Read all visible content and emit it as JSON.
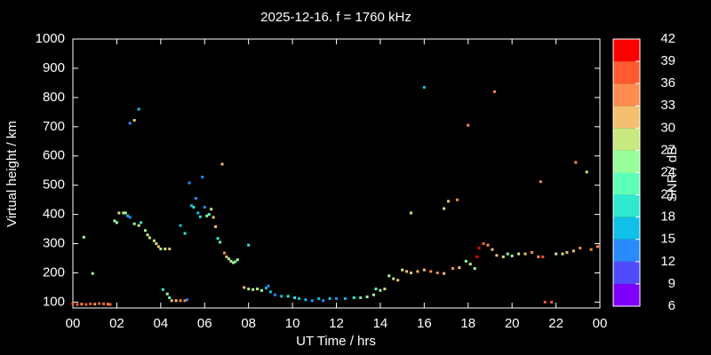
{
  "chart_data": {
    "type": "scatter",
    "title": "2025-12-16. f = 1760 kHz",
    "x_label": "UT Time / hrs",
    "y_label": "Virtual height / km",
    "xlim": [
      0,
      24
    ],
    "xticks": [
      {
        "value": 0,
        "label": "00"
      },
      {
        "value": 2,
        "label": "02"
      },
      {
        "value": 4,
        "label": "04"
      },
      {
        "value": 6,
        "label": "06"
      },
      {
        "value": 8,
        "label": "08"
      },
      10,
      12,
      14,
      16,
      18,
      20,
      22,
      {
        "value": 24,
        "label": "00"
      }
    ],
    "ylim": [
      80,
      1000
    ],
    "yticks": [
      100,
      200,
      300,
      400,
      500,
      600,
      700,
      800,
      900,
      1000
    ],
    "colorbar": {
      "label": "SNR / dB",
      "lim": [
        6,
        42
      ],
      "ticks": [
        6,
        9,
        12,
        15,
        18,
        21,
        24,
        27,
        30,
        33,
        36,
        39,
        42
      ],
      "colors": [
        "#8000ff",
        "#4f4cff",
        "#2a8aff",
        "#10c0e8",
        "#30e8d0",
        "#60ffb8",
        "#98ff98",
        "#c8e880",
        "#f4c070",
        "#ff8c50",
        "#ff5a30",
        "#ff0000"
      ]
    },
    "x": [
      0.0,
      0.2,
      0.4,
      0.6,
      0.8,
      1.0,
      1.2,
      1.4,
      1.6,
      1.7,
      0.5,
      0.9,
      1.9,
      2.0,
      2.1,
      2.3,
      2.4,
      2.5,
      2.6,
      2.6,
      2.8,
      3.0,
      2.8,
      3.0,
      3.1,
      3.3,
      3.4,
      3.5,
      3.7,
      3.8,
      3.9,
      4.0,
      4.2,
      4.4,
      4.1,
      4.3,
      4.4,
      4.5,
      4.7,
      4.9,
      5.1,
      5.2,
      4.9,
      5.1,
      5.3,
      5.4,
      5.5,
      5.6,
      5.7,
      5.8,
      5.9,
      6.0,
      6.1,
      6.2,
      6.3,
      6.4,
      6.5,
      6.6,
      6.7,
      6.8,
      6.9,
      7.0,
      7.1,
      7.2,
      7.3,
      7.4,
      7.5,
      7.8,
      8.0,
      8.2,
      8.4,
      8.0,
      8.6,
      8.8,
      8.9,
      9.0,
      9.2,
      9.5,
      9.8,
      10.1,
      10.3,
      10.6,
      10.9,
      11.2,
      11.4,
      11.7,
      12.0,
      12.4,
      12.8,
      13.1,
      13.4,
      13.7,
      13.8,
      14.0,
      14.2,
      14.4,
      14.6,
      14.8,
      15.0,
      15.2,
      15.4,
      15.4,
      15.7,
      16.0,
      16.0,
      16.3,
      16.6,
      16.9,
      16.9,
      17.1,
      17.3,
      17.5,
      17.6,
      17.9,
      18.0,
      18.1,
      18.3,
      18.4,
      18.5,
      18.7,
      18.9,
      19.1,
      19.2,
      19.3,
      19.6,
      19.8,
      20.0,
      20.3,
      20.6,
      20.9,
      21.2,
      21.4,
      21.5,
      21.8,
      21.3,
      22.0,
      22.3,
      22.5,
      22.8,
      22.9,
      23.1,
      23.4,
      23.6,
      23.9
    ],
    "values": [
      95,
      92,
      93,
      92,
      94,
      93,
      95,
      94,
      93,
      92,
      322,
      198,
      378,
      372,
      405,
      405,
      405,
      395,
      390,
      712,
      722,
      760,
      368,
      362,
      372,
      345,
      330,
      320,
      310,
      300,
      290,
      282,
      282,
      282,
      143,
      128,
      115,
      105,
      105,
      105,
      105,
      108,
      362,
      335,
      508,
      430,
      425,
      455,
      405,
      392,
      528,
      425,
      395,
      400,
      418,
      390,
      358,
      318,
      305,
      572,
      268,
      255,
      248,
      240,
      235,
      238,
      245,
      150,
      145,
      143,
      145,
      295,
      140,
      148,
      155,
      135,
      125,
      120,
      120,
      115,
      112,
      108,
      105,
      112,
      105,
      112,
      112,
      112,
      115,
      115,
      118,
      125,
      145,
      140,
      145,
      190,
      180,
      175,
      210,
      205,
      200,
      405,
      205,
      210,
      835,
      205,
      200,
      198,
      420,
      445,
      215,
      450,
      218,
      240,
      705,
      230,
      215,
      255,
      285,
      300,
      295,
      280,
      820,
      260,
      255,
      265,
      258,
      265,
      265,
      270,
      255,
      255,
      100,
      100,
      512,
      265,
      265,
      270,
      275,
      578,
      285,
      545,
      280,
      290
    ],
    "snr": [
      36,
      36,
      33,
      36,
      36,
      33,
      36,
      36,
      33,
      36,
      24,
      24,
      24,
      24,
      27,
      27,
      24,
      15,
      12,
      12,
      30,
      15,
      24,
      27,
      18,
      24,
      27,
      27,
      27,
      27,
      30,
      27,
      27,
      30,
      18,
      24,
      21,
      30,
      30,
      33,
      33,
      12,
      15,
      18,
      12,
      15,
      18,
      12,
      15,
      18,
      12,
      12,
      24,
      21,
      27,
      30,
      30,
      18,
      21,
      30,
      33,
      30,
      24,
      27,
      27,
      21,
      24,
      30,
      27,
      24,
      27,
      18,
      24,
      15,
      12,
      15,
      12,
      15,
      18,
      18,
      15,
      15,
      12,
      15,
      12,
      15,
      12,
      15,
      18,
      21,
      24,
      24,
      21,
      24,
      27,
      24,
      27,
      30,
      27,
      30,
      30,
      27,
      30,
      30,
      15,
      33,
      33,
      30,
      27,
      30,
      33,
      33,
      30,
      24,
      33,
      27,
      24,
      39,
      39,
      36,
      33,
      30,
      33,
      30,
      27,
      24,
      24,
      27,
      30,
      33,
      33,
      36,
      36,
      36,
      33,
      27,
      27,
      30,
      30,
      33,
      33,
      27,
      33,
      33
    ]
  }
}
